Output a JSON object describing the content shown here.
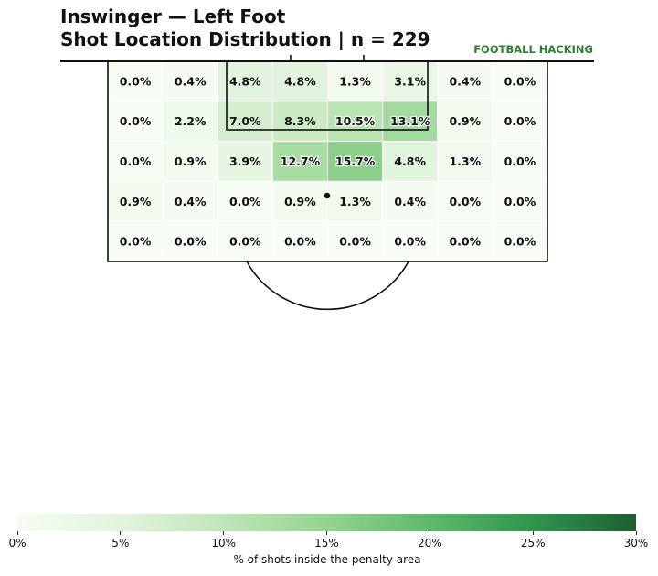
{
  "title": {
    "line1": "Inswinger — Left Foot",
    "line2": "Shot Location Distribution | n = 229"
  },
  "brand": "FOOTBALL HACKING",
  "colors": {
    "cmap_low": "#f7fcf5",
    "cmap_mid": "#74c476",
    "cmap_high": "#1e5e34",
    "lines": "#111111",
    "brand": "#2e7d32"
  },
  "chart_data": {
    "type": "heatmap",
    "title": "Inswinger — Left Foot / Shot Location Distribution | n = 229",
    "n_shots": 229,
    "value_unit": "%",
    "rows": 5,
    "cols": 8,
    "values": [
      [
        0.0,
        0.4,
        4.8,
        4.8,
        1.3,
        3.1,
        0.4,
        0.0
      ],
      [
        0.0,
        2.2,
        7.0,
        8.3,
        10.5,
        13.1,
        0.9,
        0.0
      ],
      [
        0.0,
        0.9,
        3.9,
        12.7,
        15.7,
        4.8,
        1.3,
        0.0
      ],
      [
        0.9,
        0.4,
        0.0,
        0.9,
        1.3,
        0.4,
        0.0,
        0.0
      ],
      [
        0.0,
        0.0,
        0.0,
        0.0,
        0.0,
        0.0,
        0.0,
        0.0
      ]
    ],
    "labels": [
      [
        "0.0%",
        "0.4%",
        "4.8%",
        "4.8%",
        "1.3%",
        "3.1%",
        "0.4%",
        "0.0%"
      ],
      [
        "0.0%",
        "2.2%",
        "7.0%",
        "8.3%",
        "10.5%",
        "13.1%",
        "0.9%",
        "0.0%"
      ],
      [
        "0.0%",
        "0.9%",
        "3.9%",
        "12.7%",
        "15.7%",
        "4.8%",
        "1.3%",
        "0.0%"
      ],
      [
        "0.9%",
        "0.4%",
        "0.0%",
        "0.9%",
        "1.3%",
        "0.4%",
        "0.0%",
        "0.0%"
      ],
      [
        "0.0%",
        "0.0%",
        "0.0%",
        "0.0%",
        "0.0%",
        "0.0%",
        "0.0%",
        "0.0%"
      ]
    ],
    "colorbar": {
      "label": "% of shots inside the penalty area",
      "range": [
        0,
        30
      ],
      "ticks": [
        0,
        5,
        10,
        15,
        20,
        25,
        30
      ],
      "tick_labels": [
        "0%",
        "5%",
        "10%",
        "15%",
        "20%",
        "25%",
        "30%"
      ]
    },
    "legend": "none",
    "grid": false
  }
}
